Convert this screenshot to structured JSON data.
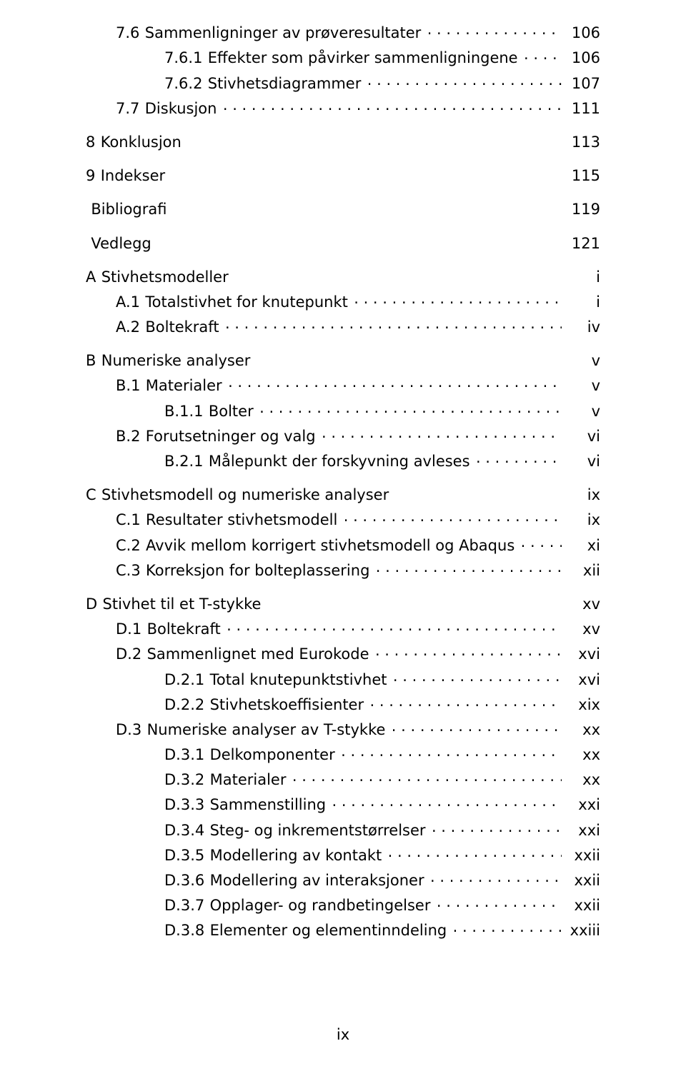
{
  "toc": [
    {
      "level": 1,
      "num": "7.6",
      "title": "Sammenligninger av prøveresultater",
      "page": "106",
      "dots": true
    },
    {
      "level": 2,
      "num": "7.6.1",
      "title": "Effekter som påvirker sammenligningene",
      "page": "106",
      "dots": true
    },
    {
      "level": 2,
      "num": "7.6.2",
      "title": "Stivhetsdiagrammer",
      "page": "107",
      "dots": true
    },
    {
      "level": 1,
      "num": "7.7",
      "title": "Diskusjon",
      "page": "111",
      "dots": true
    },
    {
      "level": 0,
      "num": "8",
      "title": "Konklusjon",
      "page": "113",
      "dots": false,
      "gap": true
    },
    {
      "level": 0,
      "num": "9",
      "title": "Indekser",
      "page": "115",
      "dots": false,
      "gap": true
    },
    {
      "level": 0,
      "num": "",
      "title": "Bibliografi",
      "page": "119",
      "dots": false,
      "gap": true
    },
    {
      "level": 0,
      "num": "",
      "title": "Vedlegg",
      "page": "121",
      "dots": false,
      "gap": true
    },
    {
      "level": 0,
      "num": "A",
      "title": "Stivhetsmodeller",
      "page": "i",
      "dots": false,
      "gap": true
    },
    {
      "level": 1,
      "num": "A.1",
      "title": "Totalstivhet for knutepunkt",
      "page": "i",
      "dots": true
    },
    {
      "level": 1,
      "num": "A.2",
      "title": "Boltekraft",
      "page": "iv",
      "dots": true
    },
    {
      "level": 0,
      "num": "B",
      "title": "Numeriske analyser",
      "page": "v",
      "dots": false,
      "gap": true
    },
    {
      "level": 1,
      "num": "B.1",
      "title": "Materialer",
      "page": "v",
      "dots": true
    },
    {
      "level": 2,
      "num": "B.1.1",
      "title": "Bolter",
      "page": "v",
      "dots": true
    },
    {
      "level": 1,
      "num": "B.2",
      "title": "Forutsetninger og valg",
      "page": "vi",
      "dots": true
    },
    {
      "level": 2,
      "num": "B.2.1",
      "title": "Målepunkt der forskyvning avleses",
      "page": "vi",
      "dots": true
    },
    {
      "level": 0,
      "num": "C",
      "title": "Stivhetsmodell og numeriske analyser",
      "page": "ix",
      "dots": false,
      "gap": true
    },
    {
      "level": 1,
      "num": "C.1",
      "title": "Resultater stivhetsmodell",
      "page": "ix",
      "dots": true
    },
    {
      "level": 1,
      "num": "C.2",
      "title": "Avvik mellom korrigert stivhetsmodell og Abaqus",
      "page": "xi",
      "dots": true
    },
    {
      "level": 1,
      "num": "C.3",
      "title": "Korreksjon for bolteplassering",
      "page": "xii",
      "dots": true
    },
    {
      "level": 0,
      "num": "D",
      "title": "Stivhet til et T-stykke",
      "page": "xv",
      "dots": false,
      "gap": true
    },
    {
      "level": 1,
      "num": "D.1",
      "title": "Boltekraft",
      "page": "xv",
      "dots": true
    },
    {
      "level": 1,
      "num": "D.2",
      "title": "Sammenlignet med Eurokode",
      "page": "xvi",
      "dots": true
    },
    {
      "level": 2,
      "num": "D.2.1",
      "title": "Total knutepunktstivhet",
      "page": "xvi",
      "dots": true
    },
    {
      "level": 2,
      "num": "D.2.2",
      "title": "Stivhetskoeffisienter",
      "page": "xix",
      "dots": true
    },
    {
      "level": 1,
      "num": "D.3",
      "title": "Numeriske analyser av T-stykke",
      "page": "xx",
      "dots": true
    },
    {
      "level": 2,
      "num": "D.3.1",
      "title": "Delkomponenter",
      "page": "xx",
      "dots": true
    },
    {
      "level": 2,
      "num": "D.3.2",
      "title": "Materialer",
      "page": "xx",
      "dots": true
    },
    {
      "level": 2,
      "num": "D.3.3",
      "title": "Sammenstilling",
      "page": "xxi",
      "dots": true
    },
    {
      "level": 2,
      "num": "D.3.4",
      "title": "Steg- og inkrementstørrelser",
      "page": "xxi",
      "dots": true
    },
    {
      "level": 2,
      "num": "D.3.5",
      "title": "Modellering av kontakt",
      "page": "xxii",
      "dots": true
    },
    {
      "level": 2,
      "num": "D.3.6",
      "title": "Modellering av interaksjoner",
      "page": "xxii",
      "dots": true
    },
    {
      "level": 2,
      "num": "D.3.7",
      "title": "Opplager- og randbetingelser",
      "page": "xxii",
      "dots": true
    },
    {
      "level": 2,
      "num": "D.3.8",
      "title": "Elementer og elementinndeling",
      "page": "xxiii",
      "dots": true
    }
  ],
  "footer": {
    "page_number": "ix"
  }
}
